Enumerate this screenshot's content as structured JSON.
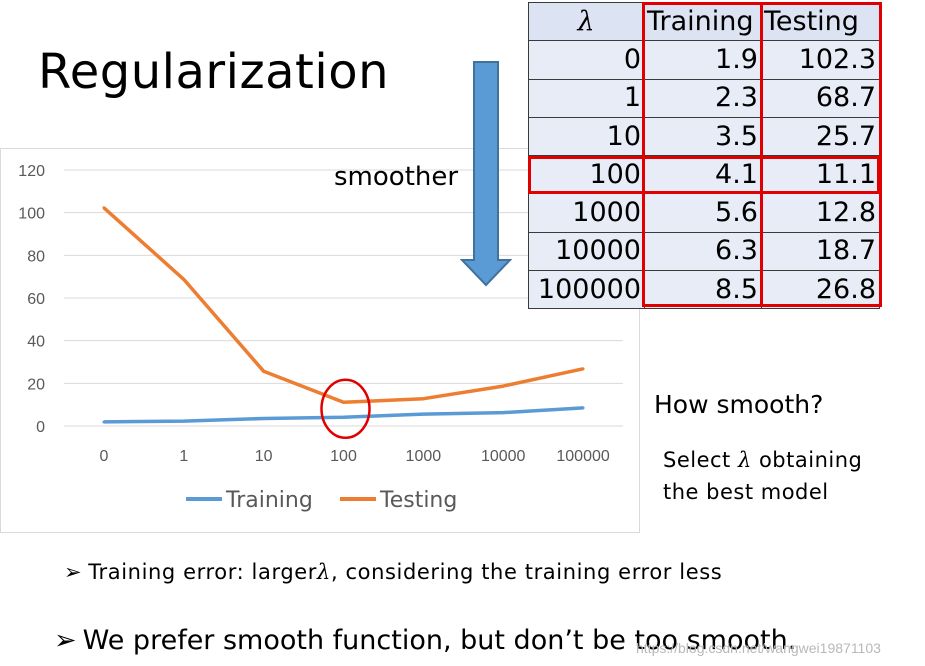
{
  "slide": {
    "title": "Regularization",
    "smoother_label": "smoother",
    "how_smooth": "How smooth?",
    "select_line1_pre": "Select ",
    "select_lambda": "λ",
    "select_line1_post": " obtaining",
    "select_line2": "the best model",
    "bullet1_pre": "Training error: larger",
    "bullet1_lambda": "λ",
    "bullet1_post": ", considering the training error less",
    "bullet2": "We prefer smooth function, but don’t be too smooth.",
    "bullet_mark": "➢",
    "watermark": "https://blog.csdn.net/wangwei19871103"
  },
  "table": {
    "headers": [
      "λ",
      "Training",
      "Testing"
    ],
    "rows": [
      [
        "0",
        "1.9",
        "102.3"
      ],
      [
        "1",
        "2.3",
        "68.7"
      ],
      [
        "10",
        "3.5",
        "25.7"
      ],
      [
        "100",
        "4.1",
        "11.1"
      ],
      [
        "1000",
        "5.6",
        "12.8"
      ],
      [
        "10000",
        "6.3",
        "18.7"
      ],
      [
        "100000",
        "8.5",
        "26.8"
      ]
    ],
    "highlight_row": 3
  },
  "chart_data": {
    "type": "line",
    "categories": [
      "0",
      "1",
      "10",
      "100",
      "1000",
      "10000",
      "100000"
    ],
    "series": [
      {
        "name": "Training",
        "values": [
          1.9,
          2.3,
          3.5,
          4.1,
          5.6,
          6.3,
          8.5
        ],
        "color": "#5b9bd5"
      },
      {
        "name": "Testing",
        "values": [
          102.3,
          68.7,
          25.7,
          11.1,
          12.8,
          18.7,
          26.8
        ],
        "color": "#ed7d31"
      }
    ],
    "yticks": [
      "0",
      "20",
      "40",
      "60",
      "80",
      "100",
      "120"
    ],
    "ylim": [
      0,
      120
    ],
    "grid": true,
    "legend": "bottom",
    "highlight_category": "100",
    "highlight_color": "#e00000"
  },
  "colors": {
    "arrow_fill": "#5b9bd5",
    "arrow_stroke": "#41719c",
    "red": "#e00000"
  }
}
